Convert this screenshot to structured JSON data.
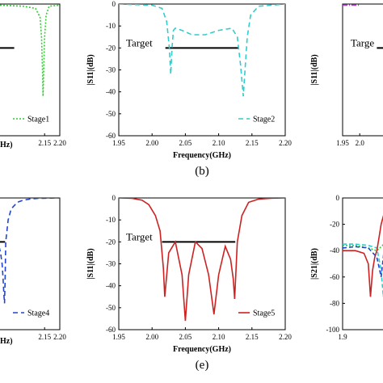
{
  "chart_data": [
    {
      "id": "a",
      "type": "line",
      "panel_label": "",
      "xlim": [
        1.95,
        2.2
      ],
      "ylim": [
        -60,
        0
      ],
      "xticks": [
        "2.15",
        "2.20"
      ],
      "yticks": [],
      "xlabel_fragment": "Hz)",
      "ylabel": "",
      "target_text": "",
      "target": {
        "x": [
          1.95,
          2.05
        ],
        "y": -20
      },
      "series": [
        {
          "name": "Stage1",
          "color": "#33cc33",
          "dash": "2,2",
          "x": [
            1.95,
            2.0,
            2.08,
            2.12,
            2.135,
            2.14,
            2.143,
            2.145,
            2.147,
            2.15,
            2.155,
            2.165,
            2.2
          ],
          "y": [
            -1,
            -0.5,
            -1,
            -2,
            -6,
            -15,
            -30,
            -42,
            -30,
            -15,
            -5,
            -1,
            -0.5
          ]
        }
      ]
    },
    {
      "id": "b",
      "type": "line",
      "panel_label": "(b)",
      "xlim": [
        1.95,
        2.2
      ],
      "ylim": [
        -60,
        0
      ],
      "xticks": [
        "1.95",
        "2.00",
        "2.05",
        "2.10",
        "2.15",
        "2.20"
      ],
      "yticks": [
        "0",
        "-10",
        "-20",
        "-30",
        "-40",
        "-50",
        "-60"
      ],
      "xlabel": "Frequency(GHz)",
      "ylabel": "|S11|(dB)",
      "target_text": "Target",
      "target": {
        "x": [
          2.02,
          2.13
        ],
        "y": -20
      },
      "series": [
        {
          "name": "Stage2",
          "color": "#33cccc",
          "dash": "6,4",
          "x": [
            1.95,
            2.0,
            2.015,
            2.022,
            2.026,
            2.028,
            2.03,
            2.032,
            2.035,
            2.045,
            2.06,
            2.08,
            2.1,
            2.12,
            2.128,
            2.133,
            2.137,
            2.14,
            2.143,
            2.148,
            2.16,
            2.2
          ],
          "y": [
            0,
            -0.5,
            -2,
            -8,
            -20,
            -32,
            -20,
            -12,
            -11,
            -12,
            -14,
            -14,
            -12,
            -11,
            -15,
            -28,
            -42,
            -28,
            -15,
            -5,
            -1,
            0
          ]
        }
      ]
    },
    {
      "id": "c",
      "type": "line",
      "panel_label": "",
      "xlim": [
        1.95,
        2.2
      ],
      "ylim": [
        -60,
        0
      ],
      "xticks": [
        "1.95",
        "2.0"
      ],
      "yticks": [],
      "ylabel": "|S11|(dB)",
      "target_text": "Targe",
      "target": {
        "x": [
          2.05,
          2.2
        ],
        "y": -20
      },
      "series": [
        {
          "name": "",
          "color": "#aa44cc",
          "dash": "6,2,1,2",
          "x": [
            1.95,
            2.0
          ],
          "y": [
            -0.5,
            -0.5
          ]
        }
      ]
    },
    {
      "id": "d",
      "type": "line",
      "panel_label": "",
      "xlim": [
        1.95,
        2.2
      ],
      "ylim": [
        -60,
        0
      ],
      "xticks": [
        "2.15",
        "2.20"
      ],
      "yticks": [],
      "xlabel_fragment": "Hz)",
      "ylabel": "",
      "target_text": "",
      "target": {
        "x": [
          1.95,
          2.02
        ],
        "y": -20
      },
      "series": [
        {
          "name": "Stage4",
          "color": "#2244cc",
          "dash": "6,4",
          "x": [
            1.95,
            2.0,
            2.005,
            2.01,
            2.013,
            2.016,
            2.018,
            2.02,
            2.022,
            2.03,
            2.04,
            2.06,
            2.08,
            2.1,
            2.13,
            2.2
          ],
          "y": [
            -24,
            -22,
            -25,
            -30,
            -36,
            -44,
            -48,
            -38,
            -20,
            -10,
            -5,
            -2,
            -1,
            -0.5,
            -0.2,
            0
          ]
        }
      ]
    },
    {
      "id": "e",
      "type": "line",
      "panel_label": "(e)",
      "xlim": [
        1.95,
        2.2
      ],
      "ylim": [
        -60,
        0
      ],
      "xticks": [
        "1.95",
        "2.00",
        "2.05",
        "2.10",
        "2.15",
        "2.20"
      ],
      "yticks": [
        "0",
        "-10",
        "-20",
        "-30",
        "-40",
        "-50",
        "-60"
      ],
      "xlabel": "Frequency(GHz)",
      "ylabel": "|S11|(dB)",
      "target_text": "Target",
      "target": {
        "x": [
          2.015,
          2.125
        ],
        "y": -20
      },
      "series": [
        {
          "name": "Stage5",
          "color": "#cc2222",
          "dash": "",
          "x": [
            1.95,
            1.97,
            1.985,
            1.995,
            2.005,
            2.012,
            2.017,
            2.019,
            2.025,
            2.035,
            2.045,
            2.05,
            2.055,
            2.065,
            2.075,
            2.085,
            2.093,
            2.1,
            2.11,
            2.118,
            2.122,
            2.124,
            2.128,
            2.135,
            2.145,
            2.16,
            2.18,
            2.2
          ],
          "y": [
            0,
            -0.2,
            -1,
            -3,
            -8,
            -15,
            -32,
            -45,
            -25,
            -20,
            -35,
            -56,
            -35,
            -20,
            -23,
            -35,
            -53,
            -35,
            -22,
            -28,
            -37,
            -46,
            -20,
            -8,
            -2,
            -0.5,
            -0.1,
            0
          ]
        }
      ]
    },
    {
      "id": "f",
      "type": "line",
      "panel_label": "",
      "xlim": [
        1.9,
        2.1
      ],
      "ylim": [
        -100,
        0
      ],
      "xticks": [
        "1.9"
      ],
      "yticks": [
        "0",
        "-20",
        "-40",
        "-60",
        "-80",
        "-100"
      ],
      "ylabel": "|S21|(dB)",
      "target_text": "",
      "series": [
        {
          "name": "",
          "color": "#33cc33",
          "dash": "2,2",
          "x": [
            1.9,
            1.93,
            1.96,
            1.98,
            2.0,
            2.02
          ],
          "y": [
            -36,
            -36,
            -38,
            -40,
            -34,
            -30
          ]
        },
        {
          "name": "",
          "color": "#33cccc",
          "dash": "5,3",
          "x": [
            1.9,
            1.93,
            1.96,
            1.98,
            1.99,
            1.995,
            2.0,
            2.005,
            2.01
          ],
          "y": [
            -35,
            -35,
            -36,
            -38,
            -55,
            -75,
            -40,
            -60,
            -35
          ]
        },
        {
          "name": "",
          "color": "#cc2222",
          "dash": "",
          "x": [
            1.9,
            1.93,
            1.95,
            1.96,
            1.965,
            1.97,
            1.975,
            1.98,
            1.985,
            1.99,
            2.0,
            2.01
          ],
          "y": [
            -40,
            -40,
            -42,
            -50,
            -75,
            -55,
            -45,
            -40,
            -30,
            -20,
            -8,
            -3
          ]
        },
        {
          "name": "",
          "color": "#2244cc",
          "dash": "5,3",
          "x": [
            1.9,
            1.93,
            1.96,
            1.98,
            1.99,
            2.0,
            2.01
          ],
          "y": [
            -38,
            -37,
            -38,
            -45,
            -60,
            -30,
            -15
          ]
        }
      ]
    }
  ]
}
